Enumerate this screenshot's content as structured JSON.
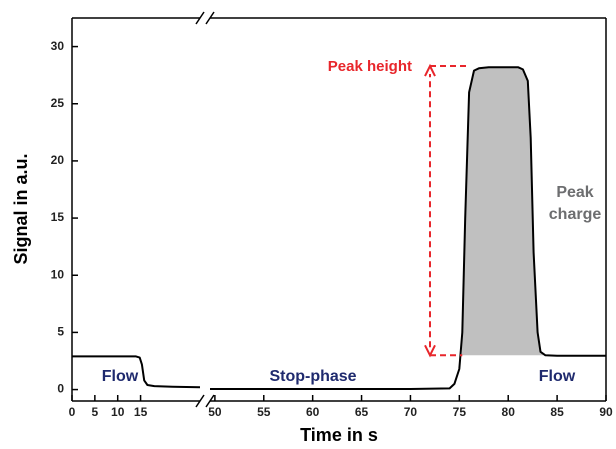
{
  "chart_data": {
    "type": "line",
    "ylabel": "Signal in a.u.",
    "xlabel": "Time in s",
    "ylim": [
      -1,
      32.5
    ],
    "yticks": [
      0,
      5,
      10,
      15,
      20,
      25,
      30
    ],
    "x_segments": [
      {
        "xlim": [
          0,
          28
        ],
        "xticks": [
          0,
          5,
          10,
          15
        ]
      },
      {
        "xlim": [
          49.5,
          90
        ],
        "xticks": [
          50,
          55,
          60,
          65,
          70,
          75,
          80,
          85,
          90
        ]
      }
    ],
    "series": [
      {
        "color": "#000000",
        "x": [
          0,
          14,
          14.8,
          15.3,
          15.8,
          16.5,
          18,
          22,
          28
        ],
        "values": [
          2.9,
          2.9,
          2.8,
          2.2,
          0.8,
          0.4,
          0.3,
          0.25,
          0.2
        ]
      },
      {
        "color": "#000000",
        "x": [
          49.5,
          60,
          70,
          74,
          74.5,
          75,
          75.3,
          75.6,
          76,
          76.5,
          77,
          78,
          80,
          81,
          81.5,
          82,
          82.3,
          82.6,
          83,
          83.3,
          83.8,
          85,
          90
        ],
        "values": [
          0.05,
          0.05,
          0.05,
          0.1,
          0.5,
          1.8,
          5,
          15,
          26,
          27.9,
          28.1,
          28.2,
          28.2,
          28.2,
          28,
          27,
          22,
          12,
          5,
          3.3,
          3,
          2.95,
          2.95
        ]
      }
    ],
    "fill": {
      "color": "#c0c0c0",
      "base": 3,
      "x": [
        75.25,
        75.3,
        75.6,
        76,
        76.5,
        77,
        78,
        80,
        81,
        81.5,
        82,
        82.3,
        82.6,
        83,
        83.3,
        83.6
      ],
      "values": [
        3,
        5,
        15,
        26,
        27.9,
        28.1,
        28.2,
        28.2,
        28.2,
        28,
        27,
        22,
        12,
        5,
        3.3,
        3
      ]
    },
    "peak_arrow": {
      "x": 72,
      "from": 3,
      "to": 28.3,
      "color": "#e8262b",
      "top_end": 76,
      "base_end": 75.3
    },
    "annotations": [
      {
        "text": "Peak height",
        "color": "#e8262b"
      },
      {
        "text": "Peak charge",
        "color": "#6d6e70"
      },
      {
        "text": "Flow",
        "color": "#1f2a6e"
      },
      {
        "text": "Stop-phase",
        "color": "#1f2a6e"
      },
      {
        "text": "Flow",
        "color": "#1f2a6e"
      }
    ]
  }
}
